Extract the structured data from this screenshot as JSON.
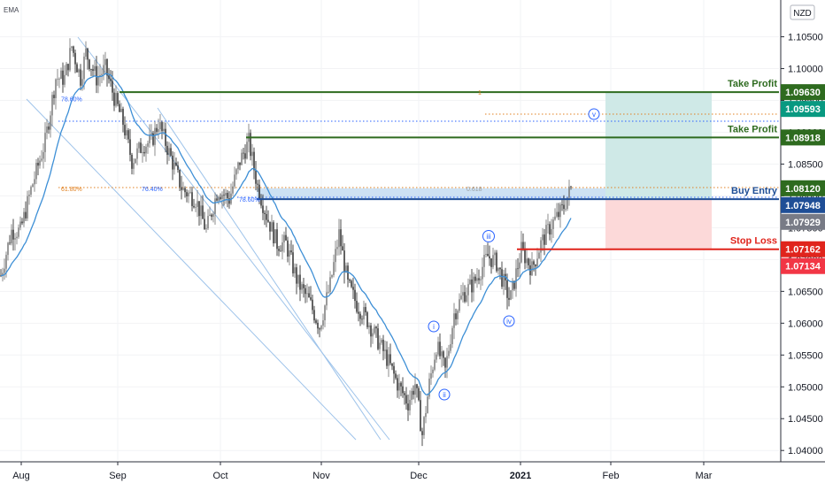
{
  "indicator_label": "EMA",
  "currency_label": "NZD",
  "chart_data": {
    "type": "candlestick",
    "ylim": [
      1.0385,
      1.1105
    ],
    "x_categories": [
      "Aug",
      "Sep",
      "Oct",
      "Nov",
      "Dec",
      "2021",
      "Feb",
      "Mar"
    ],
    "y_ticks": [
      "1.10500",
      "1.10000",
      "1.09500",
      "1.09000",
      "1.08500",
      "1.08000",
      "1.07500",
      "1.07000",
      "1.06500",
      "1.06000",
      "1.05500",
      "1.05000",
      "1.04500",
      "1.04000"
    ],
    "y_tick_values": [
      1.105,
      1.1,
      1.095,
      1.09,
      1.085,
      1.08,
      1.075,
      1.07,
      1.065,
      1.06,
      1.055,
      1.05,
      1.045,
      1.04
    ],
    "price_path": [
      {
        "t": 0,
        "p": 1.0675
      },
      {
        "t": 12,
        "p": 1.0745
      },
      {
        "t": 22,
        "p": 1.0745
      },
      {
        "t": 35,
        "p": 1.0815
      },
      {
        "t": 50,
        "p": 1.0885
      },
      {
        "t": 62,
        "p": 1.0985
      },
      {
        "t": 72,
        "p": 1.0985
      },
      {
        "t": 80,
        "p": 1.1035
      },
      {
        "t": 90,
        "p": 1.0985
      },
      {
        "t": 96,
        "p": 1.1025
      },
      {
        "t": 108,
        "p": 1.0985
      },
      {
        "t": 118,
        "p": 1.1
      },
      {
        "t": 128,
        "p": 1.0955
      },
      {
        "t": 138,
        "p": 1.0915
      },
      {
        "t": 148,
        "p": 1.0855
      },
      {
        "t": 160,
        "p": 1.088
      },
      {
        "t": 170,
        "p": 1.0885
      },
      {
        "t": 178,
        "p": 1.0915
      },
      {
        "t": 192,
        "p": 1.086
      },
      {
        "t": 205,
        "p": 1.081
      },
      {
        "t": 220,
        "p": 1.0795
      },
      {
        "t": 232,
        "p": 1.0745
      },
      {
        "t": 245,
        "p": 1.081
      },
      {
        "t": 258,
        "p": 1.0795
      },
      {
        "t": 270,
        "p": 1.0855
      },
      {
        "t": 280,
        "p": 1.0885
      },
      {
        "t": 290,
        "p": 1.0815
      },
      {
        "t": 300,
        "p": 1.077
      },
      {
        "t": 312,
        "p": 1.0725
      },
      {
        "t": 322,
        "p": 1.0725
      },
      {
        "t": 335,
        "p": 1.0665
      },
      {
        "t": 348,
        "p": 1.0635
      },
      {
        "t": 360,
        "p": 1.0595
      },
      {
        "t": 372,
        "p": 1.066
      },
      {
        "t": 382,
        "p": 1.074
      },
      {
        "t": 392,
        "p": 1.066
      },
      {
        "t": 402,
        "p": 1.063
      },
      {
        "t": 414,
        "p": 1.0605
      },
      {
        "t": 425,
        "p": 1.0575
      },
      {
        "t": 436,
        "p": 1.0545
      },
      {
        "t": 448,
        "p": 1.0505
      },
      {
        "t": 460,
        "p": 1.0475
      },
      {
        "t": 468,
        "p": 1.0505
      },
      {
        "t": 476,
        "p": 1.0425
      },
      {
        "t": 484,
        "p": 1.0505
      },
      {
        "t": 492,
        "p": 1.0565
      },
      {
        "t": 502,
        "p": 1.0525
      },
      {
        "t": 512,
        "p": 1.0615
      },
      {
        "t": 522,
        "p": 1.0645
      },
      {
        "t": 535,
        "p": 1.0665
      },
      {
        "t": 550,
        "p": 1.0705
      },
      {
        "t": 560,
        "p": 1.0695
      },
      {
        "t": 575,
        "p": 1.0635
      },
      {
        "t": 588,
        "p": 1.0715
      },
      {
        "t": 600,
        "p": 1.0685
      },
      {
        "t": 610,
        "p": 1.0725
      },
      {
        "t": 622,
        "p": 1.0755
      },
      {
        "t": 635,
        "p": 1.078
      },
      {
        "t": 644,
        "p": 1.0812
      }
    ],
    "horizontal_levels": [
      {
        "key": "tp1",
        "label": "Take Profit",
        "price": 1.0963,
        "price_label": "1.09630",
        "color": "#2e6b1f"
      },
      {
        "key": "tp2",
        "label": "Take Profit",
        "price": 1.08918,
        "price_label": "1.08918",
        "color": "#2e6b1f"
      },
      {
        "key": "entry",
        "label": "Buy Entry",
        "price": 1.07948,
        "price_label": "1.07948",
        "color": "#1f4e96"
      },
      {
        "key": "stop",
        "label": "Stop Loss",
        "price": 1.07162,
        "price_label": "1.07162",
        "color": "#e0241c"
      }
    ],
    "price_tags": [
      {
        "price": 1.0963,
        "text": "1.09630",
        "color": "#2e6b1f"
      },
      {
        "price": 1.09593,
        "text": "1.09593",
        "color": "#089981"
      },
      {
        "price": 1.08918,
        "text": "1.08918",
        "color": "#2e6b1f"
      },
      {
        "price": 1.0812,
        "text": "1.08120",
        "color": "#2e6b1f"
      },
      {
        "price": 1.07948,
        "text": "1.07948",
        "color": "#1f4e96"
      },
      {
        "price": 1.07929,
        "text": "1.07929",
        "color": "#787b86"
      },
      {
        "price": 1.07162,
        "text": "1.07162",
        "color": "#e0241c"
      },
      {
        "price": 1.07134,
        "text": "1.07134",
        "color": "#f23645"
      }
    ],
    "fib_labels": [
      {
        "text": "78.60%",
        "price": 1.0953,
        "color": "#2962ff"
      },
      {
        "text": "61.80%",
        "price": 1.0812,
        "color": "#e08020"
      },
      {
        "text": "76.40%",
        "price": 1.0812,
        "color": "#2962ff"
      },
      {
        "text": "78.60%",
        "price": 1.0795,
        "color": "#2962ff"
      },
      {
        "text": "0.618",
        "price": 1.0812,
        "color": "#9aa0a6"
      },
      {
        "text": "1",
        "price": 1.0963,
        "color": "#e08020"
      }
    ],
    "wave_labels": [
      "i",
      "ii",
      "iii",
      "iv",
      "v"
    ],
    "colors": {
      "up": "#6f6f6f",
      "down": "#1e1e1e",
      "ema": "#3d8fd6",
      "profit_zone": "#cfe9e7",
      "loss_zone": "#fcd9d9"
    }
  }
}
